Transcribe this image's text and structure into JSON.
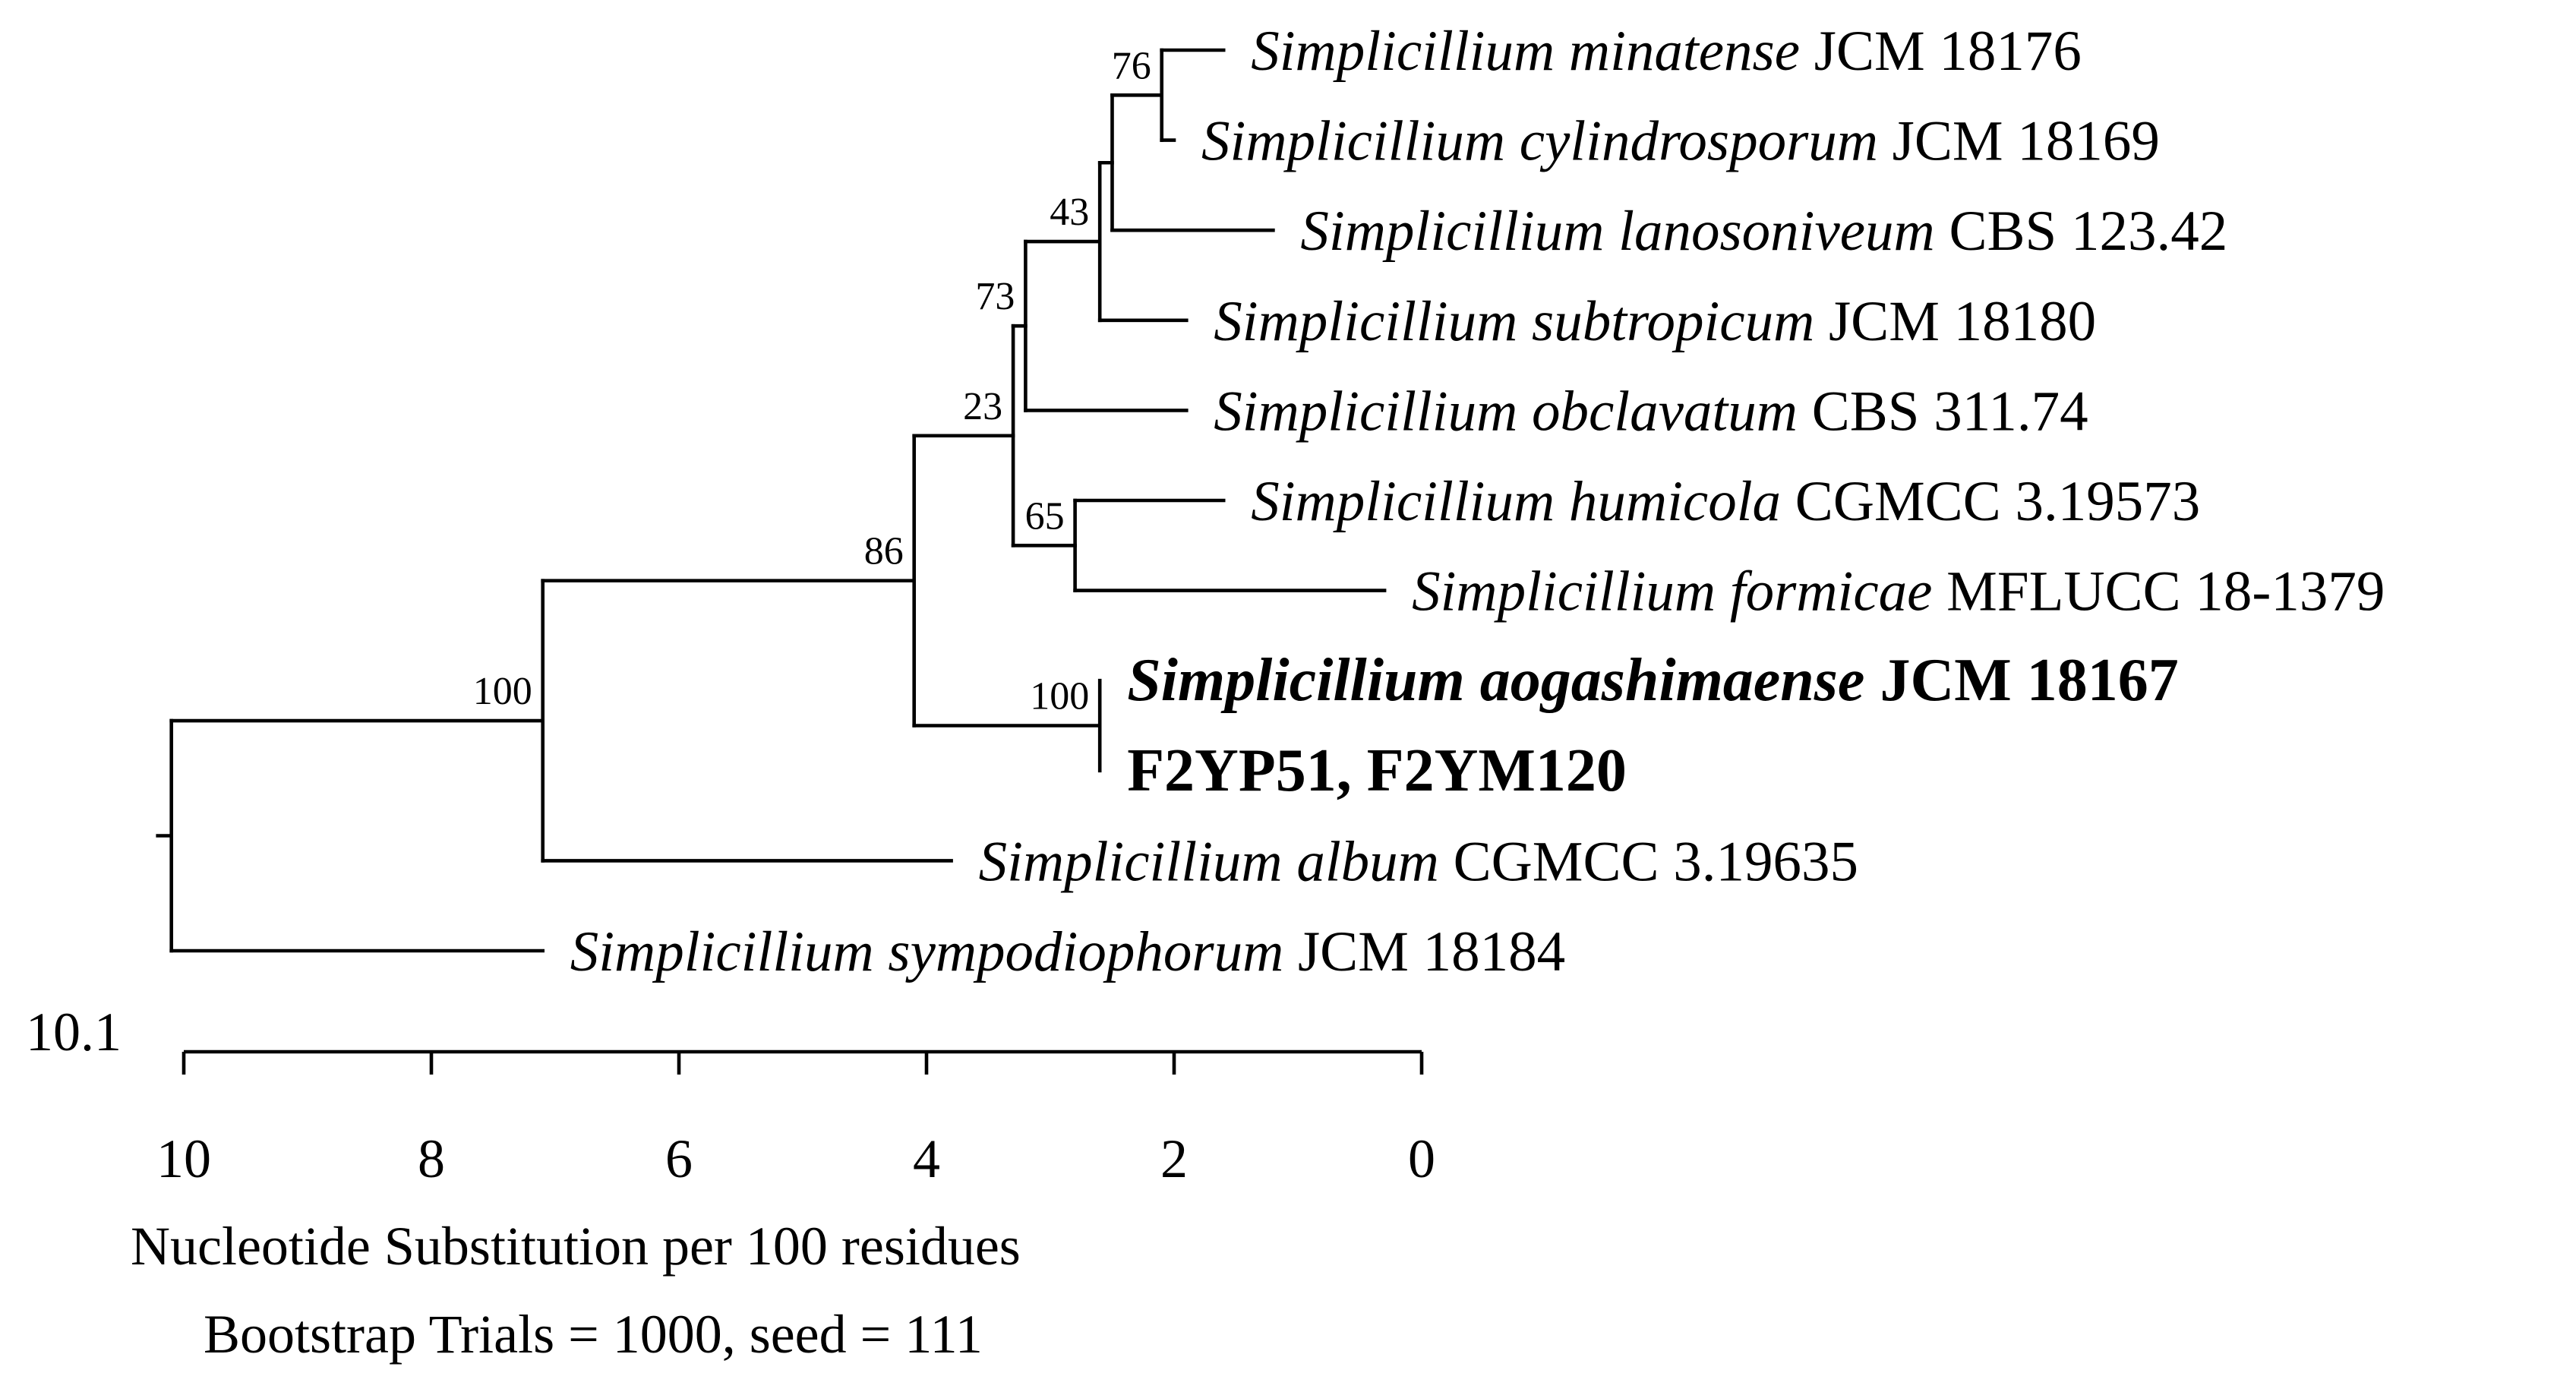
{
  "chart_data": {
    "type": "phylogenetic-tree",
    "scale_label": "10.1",
    "axis": {
      "ticks": [
        10,
        8,
        6,
        4,
        2,
        0
      ],
      "label": "Nucleotide Substitution per 100 residues",
      "range": [
        10.1,
        0
      ]
    },
    "footnote": "Bootstrap Trials = 1000, seed = 111",
    "nodes": [
      {
        "id": "root",
        "depth": 10.1,
        "children": [
          "n100a",
          "sympodiophorum"
        ],
        "bootstrap": ""
      },
      {
        "id": "n100a",
        "depth": 7.1,
        "children": [
          "n86",
          "album"
        ],
        "bootstrap": "100"
      },
      {
        "id": "n86",
        "depth": 4.1,
        "children": [
          "n23",
          "n100b"
        ],
        "bootstrap": "86"
      },
      {
        "id": "n23",
        "depth": 3.3,
        "children": [
          "n73",
          "n65"
        ],
        "bootstrap": "23"
      },
      {
        "id": "n73",
        "depth": 3.2,
        "children": [
          "n43",
          "obclavatum"
        ],
        "bootstrap": "73"
      },
      {
        "id": "n43",
        "depth": 2.6,
        "children": [
          "n76",
          "subtropicum"
        ],
        "bootstrap": "43"
      },
      {
        "id": "n76",
        "depth": 2.5,
        "children": [
          "n76b",
          "lanosoniveum"
        ],
        "bootstrap": ""
      },
      {
        "id": "n76b",
        "depth": 2.1,
        "children": [
          "minatense",
          "cylindrosporum"
        ],
        "bootstrap": "76"
      },
      {
        "id": "n65",
        "depth": 2.8,
        "children": [
          "humicola",
          "formicae"
        ],
        "bootstrap": "65"
      },
      {
        "id": "n100b",
        "depth": 2.6,
        "children": [
          "aogashimaense",
          "f2"
        ],
        "bootstrap": "100"
      }
    ],
    "leaves": [
      {
        "id": "minatense",
        "depth": 1.6,
        "genus": "Simplicillium",
        "epithet": "minatense",
        "strain": "JCM 18176",
        "highlight": false
      },
      {
        "id": "cylindrosporum",
        "depth": 2.0,
        "genus": "Simplicillium",
        "epithet": "cylindrosporum",
        "strain": "JCM 18169",
        "highlight": false
      },
      {
        "id": "lanosoniveum",
        "depth": 1.2,
        "genus": "Simplicillium",
        "epithet": "lanosoniveum",
        "strain": "CBS 123.42",
        "highlight": false
      },
      {
        "id": "subtropicum",
        "depth": 1.9,
        "genus": "Simplicillium",
        "epithet": "subtropicum",
        "strain": "JCM 18180",
        "highlight": false
      },
      {
        "id": "obclavatum",
        "depth": 1.9,
        "genus": "Simplicillium",
        "epithet": "obclavatum",
        "strain": "CBS 311.74",
        "highlight": false
      },
      {
        "id": "humicola",
        "depth": 1.6,
        "genus": "Simplicillium",
        "epithet": "humicola",
        "strain": "CGMCC 3.19573",
        "highlight": false
      },
      {
        "id": "formicae",
        "depth": 0.3,
        "genus": "Simplicillium",
        "epithet": "formicae",
        "strain": "MFLUCC 18-1379",
        "highlight": false
      },
      {
        "id": "aogashimaense",
        "depth": 2.6,
        "genus": "Simplicillium",
        "epithet": "aogashimaense",
        "strain": "JCM 18167",
        "highlight": true
      },
      {
        "id": "f2",
        "depth": 2.6,
        "genus": "",
        "epithet": "",
        "strain": "F2YP51, F2YM120",
        "highlight": true
      },
      {
        "id": "album",
        "depth": 3.8,
        "genus": "Simplicillium",
        "epithet": "album",
        "strain": "CGMCC 3.19635",
        "highlight": false
      },
      {
        "id": "sympodiophorum",
        "depth": 7.1,
        "genus": "Simplicillium",
        "epithet": "sympodiophorum",
        "strain": "JCM 18184",
        "highlight": false
      }
    ]
  }
}
